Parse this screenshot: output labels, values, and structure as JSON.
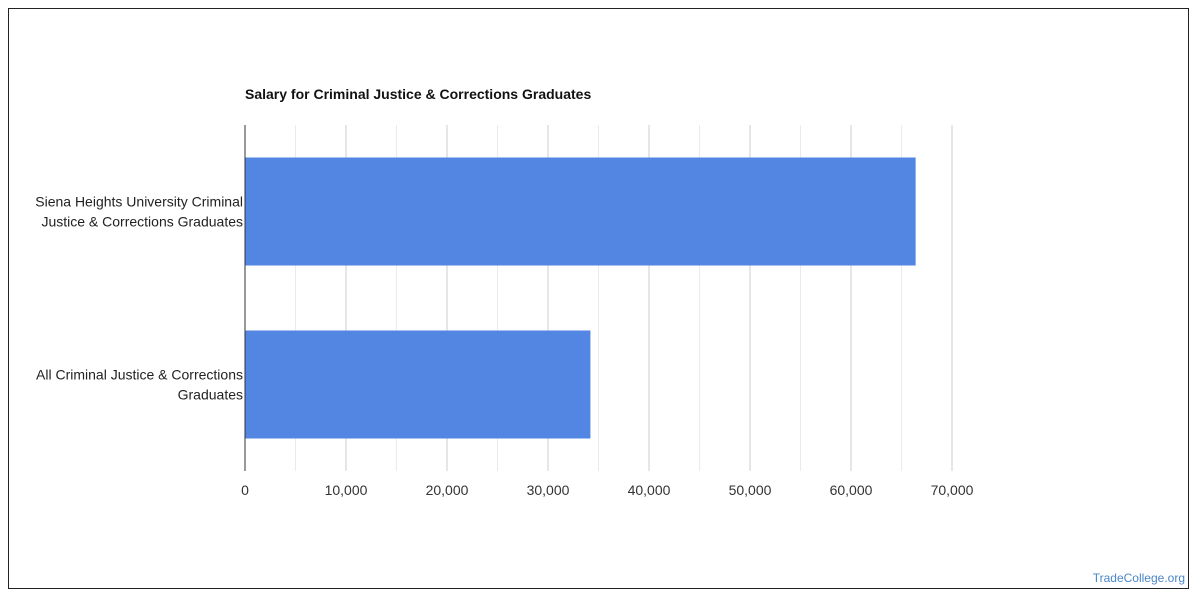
{
  "chart_data": {
    "type": "bar",
    "orientation": "horizontal",
    "title": "Salary for Criminal Justice & Corrections Graduates",
    "categories": [
      [
        "Siena Heights University Criminal",
        "Justice & Corrections Graduates"
      ],
      [
        "All Criminal Justice & Corrections",
        "Graduates"
      ]
    ],
    "values": [
      66400,
      34200
    ],
    "xlim": [
      0,
      70000
    ],
    "xticks": [
      0,
      10000,
      20000,
      30000,
      40000,
      50000,
      60000,
      70000
    ],
    "xtick_labels": [
      "0",
      "10,000",
      "20,000",
      "30,000",
      "40,000",
      "50,000",
      "60,000",
      "70,000"
    ],
    "bar_color": "#5286e2",
    "grid": true,
    "legend": "none"
  },
  "footer": {
    "watermark": "TradeCollege.org"
  }
}
